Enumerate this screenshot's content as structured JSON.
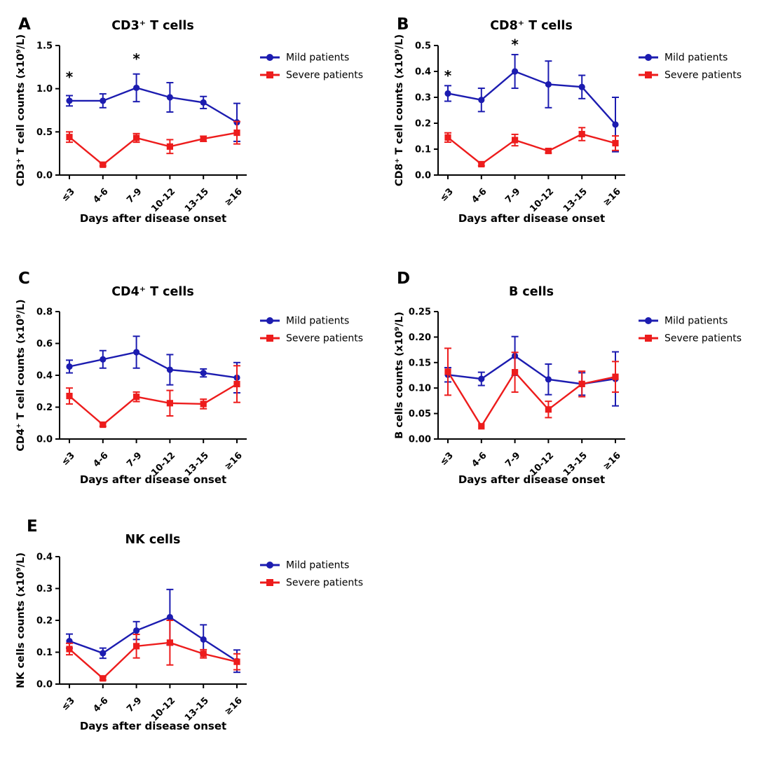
{
  "figure": {
    "x_axis_title": "Days after disease onset",
    "x_categories": [
      "≤3",
      "4-6",
      "7-9",
      "10-12",
      "13-15",
      "≥16"
    ],
    "legend": [
      {
        "label": "Mild patients",
        "color": "#1C1CB0",
        "marker": "circle"
      },
      {
        "label": "Severe patients",
        "color": "#ED1C1C",
        "marker": "square"
      }
    ],
    "colors": {
      "mild_blue": "#1C1CB0",
      "severe_red": "#ED1C1C",
      "axis_black": "#000000"
    }
  },
  "chart_data": [
    {
      "panel": "A",
      "type": "line",
      "title": "CD3⁺ T cells",
      "ylabel": "CD3⁺ T cell counts (x10⁹/L)",
      "xlabel": "Days after disease onset",
      "ylim": [
        0,
        1.5
      ],
      "yticks": [
        "0.0",
        "0.5",
        "1.0",
        "1.5"
      ],
      "categories": [
        "≤3",
        "4-6",
        "7-9",
        "10-12",
        "13-15",
        "≥16"
      ],
      "grid": false,
      "legend_position": "right",
      "series": [
        {
          "name": "Mild patients",
          "color": "#1C1CB0",
          "marker": "circle",
          "values": [
            0.86,
            0.86,
            1.01,
            0.9,
            0.84,
            0.61
          ],
          "errors": [
            0.06,
            0.08,
            0.16,
            0.17,
            0.07,
            0.22
          ]
        },
        {
          "name": "Severe patients",
          "color": "#ED1C1C",
          "marker": "square",
          "values": [
            0.44,
            0.12,
            0.43,
            0.33,
            0.42,
            0.49
          ],
          "errors": [
            0.06,
            0.015,
            0.05,
            0.08,
            0.03,
            0.13
          ]
        }
      ],
      "significance": [
        {
          "category": "≤3",
          "x_index": 0,
          "y": 1.08,
          "label": "*"
        },
        {
          "category": "7-9",
          "x_index": 2,
          "y": 1.29,
          "label": "*"
        }
      ]
    },
    {
      "panel": "B",
      "type": "line",
      "title": "CD8⁺ T cells",
      "ylabel": "CD8⁺ T cell counts (x10⁹/L)",
      "xlabel": "Days after disease onset",
      "ylim": [
        0,
        0.5
      ],
      "yticks": [
        "0.0",
        "0.1",
        "0.2",
        "0.3",
        "0.4",
        "0.5"
      ],
      "categories": [
        "≤3",
        "4-6",
        "7-9",
        "10-12",
        "13-15",
        "≥16"
      ],
      "grid": false,
      "legend_position": "right",
      "series": [
        {
          "name": "Mild patients",
          "color": "#1C1CB0",
          "marker": "circle",
          "values": [
            0.315,
            0.29,
            0.4,
            0.35,
            0.34,
            0.195
          ],
          "errors": [
            0.03,
            0.045,
            0.065,
            0.09,
            0.045,
            0.105
          ]
        },
        {
          "name": "Severe patients",
          "color": "#ED1C1C",
          "marker": "square",
          "values": [
            0.145,
            0.042,
            0.135,
            0.093,
            0.158,
            0.123
          ],
          "errors": [
            0.018,
            0.006,
            0.022,
            0.008,
            0.025,
            0.028
          ]
        }
      ],
      "significance": [
        {
          "category": "≤3",
          "x_index": 0,
          "y": 0.365,
          "label": "*"
        },
        {
          "category": "7-9",
          "x_index": 2,
          "y": 0.485,
          "label": "*"
        }
      ]
    },
    {
      "panel": "C",
      "type": "line",
      "title": "CD4⁺ T cells",
      "ylabel": "CD4⁺ T cell counts (x10⁹/L)",
      "xlabel": "Days after disease onset",
      "ylim": [
        0,
        0.8
      ],
      "yticks": [
        "0.0",
        "0.2",
        "0.4",
        "0.6",
        "0.8"
      ],
      "categories": [
        "≤3",
        "4-6",
        "7-9",
        "10-12",
        "13-15",
        "≥16"
      ],
      "grid": false,
      "legend_position": "right",
      "series": [
        {
          "name": "Mild patients",
          "color": "#1C1CB0",
          "marker": "circle",
          "values": [
            0.455,
            0.5,
            0.545,
            0.435,
            0.415,
            0.385
          ],
          "errors": [
            0.04,
            0.055,
            0.1,
            0.095,
            0.025,
            0.095
          ]
        },
        {
          "name": "Severe patients",
          "color": "#ED1C1C",
          "marker": "square",
          "values": [
            0.27,
            0.09,
            0.265,
            0.225,
            0.22,
            0.345
          ],
          "errors": [
            0.05,
            0.01,
            0.03,
            0.08,
            0.03,
            0.115
          ]
        }
      ],
      "significance": []
    },
    {
      "panel": "D",
      "type": "line",
      "title": "B cells",
      "ylabel": "B cells counts (x10⁹/L)",
      "xlabel": "Days after disease onset",
      "ylim": [
        0,
        0.25
      ],
      "yticks": [
        "0.00",
        "0.05",
        "0.10",
        "0.15",
        "0.20",
        "0.25"
      ],
      "categories": [
        "≤3",
        "4-6",
        "7-9",
        "10-12",
        "13-15",
        "≥16"
      ],
      "grid": false,
      "legend_position": "right",
      "series": [
        {
          "name": "Mild patients",
          "color": "#1C1CB0",
          "marker": "circle",
          "values": [
            0.126,
            0.118,
            0.163,
            0.117,
            0.108,
            0.118
          ],
          "errors": [
            0.014,
            0.013,
            0.038,
            0.03,
            0.022,
            0.053
          ]
        },
        {
          "name": "Severe patients",
          "color": "#ED1C1C",
          "marker": "square",
          "values": [
            0.132,
            0.025,
            0.131,
            0.058,
            0.108,
            0.122
          ],
          "errors": [
            0.046,
            0.004,
            0.039,
            0.016,
            0.025,
            0.03
          ]
        }
      ],
      "significance": []
    },
    {
      "panel": "E",
      "type": "line",
      "title": "NK cells",
      "ylabel": "NK cells counts (x10⁹/L)",
      "xlabel": "Days after disease onset",
      "ylim": [
        0,
        0.4
      ],
      "yticks": [
        "0.0",
        "0.1",
        "0.2",
        "0.3",
        "0.4"
      ],
      "categories": [
        "≤3",
        "4-6",
        "7-9",
        "10-12",
        "13-15",
        "≥16"
      ],
      "grid": false,
      "legend_position": "right",
      "series": [
        {
          "name": "Mild patients",
          "color": "#1C1CB0",
          "marker": "circle",
          "values": [
            0.135,
            0.097,
            0.168,
            0.21,
            0.14,
            0.072
          ],
          "errors": [
            0.022,
            0.016,
            0.028,
            0.087,
            0.046,
            0.035
          ]
        },
        {
          "name": "Severe patients",
          "color": "#ED1C1C",
          "marker": "square",
          "values": [
            0.11,
            0.018,
            0.119,
            0.13,
            0.095,
            0.07
          ],
          "errors": [
            0.018,
            0.005,
            0.037,
            0.07,
            0.013,
            0.025
          ]
        }
      ],
      "significance": []
    }
  ]
}
